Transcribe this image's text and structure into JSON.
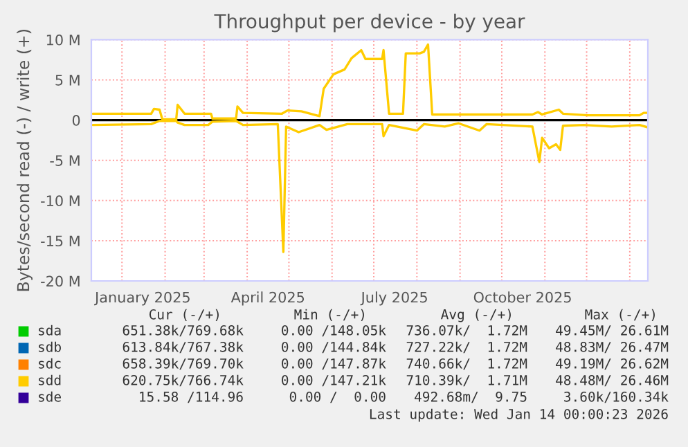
{
  "chart_data": {
    "type": "line",
    "title": "Throughput per device - by year",
    "ylabel": "Bytes/second read (-) / write (+)",
    "xlim": [
      "2024-12-10",
      "2026-01-14"
    ],
    "ylim": [
      -20,
      10
    ],
    "yticks": [
      {
        "value": 10,
        "label": "10 M"
      },
      {
        "value": 5,
        "label": "5 M"
      },
      0,
      {
        "value": -5,
        "label": "-5 M"
      },
      {
        "value": -10,
        "label": "-10 M"
      },
      {
        "value": -15,
        "label": "-15 M"
      },
      {
        "value": -20,
        "label": "-20 M"
      }
    ],
    "xticks": [
      {
        "value": "2025-01-01",
        "label": null
      },
      {
        "value": "2025-01-16",
        "label": "January 2025"
      },
      {
        "value": "2025-02-01",
        "label": null
      },
      {
        "value": "2025-03-01",
        "label": null
      },
      {
        "value": "2025-04-01",
        "label": null
      },
      {
        "value": "2025-04-16",
        "label": "April 2025"
      },
      {
        "value": "2025-05-01",
        "label": null
      },
      {
        "value": "2025-06-01",
        "label": null
      },
      {
        "value": "2025-07-01",
        "label": null
      },
      {
        "value": "2025-07-16",
        "label": "July 2025"
      },
      {
        "value": "2025-08-01",
        "label": null
      },
      {
        "value": "2025-09-01",
        "label": null
      },
      {
        "value": "2025-10-01",
        "label": null
      },
      {
        "value": "2025-10-16",
        "label": "October 2025"
      },
      {
        "value": "2025-11-01",
        "label": null
      },
      {
        "value": "2025-12-01",
        "label": null
      },
      {
        "value": "2026-01-01",
        "label": null
      }
    ],
    "grid": true,
    "legend": "bottom",
    "ref_lines": [
      {
        "axis": "y",
        "value": 0,
        "color": "#000000"
      }
    ],
    "series": [
      {
        "name": "sda",
        "color": "#00cc00"
      },
      {
        "name": "sdb",
        "color": "#0066b3"
      },
      {
        "name": "sdc",
        "color": "#ff8000"
      },
      {
        "name": "sdd",
        "color": "#ffcc00",
        "x": [
          "2024-12-11",
          "2025-01-22",
          "2025-01-24",
          "2025-01-28",
          "2025-01-30",
          "2025-02-09",
          "2025-02-10",
          "2025-02-15",
          "2025-03-06",
          "2025-03-07",
          "2025-03-24",
          "2025-03-25",
          "2025-03-29",
          "2025-04-26",
          "2025-04-30",
          "2025-05-10",
          "2025-05-23",
          "2025-05-26",
          "2025-06-02",
          "2025-06-10",
          "2025-06-15",
          "2025-06-22",
          "2025-06-25",
          "2025-07-07",
          "2025-07-08",
          "2025-07-12",
          "2025-07-22",
          "2025-07-24",
          "2025-08-03",
          "2025-08-06",
          "2025-08-09",
          "2025-08-12",
          "2025-10-23",
          "2025-10-27",
          "2025-10-30",
          "2025-11-11",
          "2025-11-14",
          "2025-12-02",
          "2026-01-08",
          "2026-01-11",
          "2026-01-14"
        ],
        "values": [
          0.8,
          0.8,
          1.4,
          1.3,
          0.1,
          0.1,
          1.9,
          0.8,
          0.8,
          0.2,
          0.2,
          1.7,
          0.9,
          0.8,
          1.2,
          1.1,
          0.5,
          3.9,
          5.7,
          6.3,
          7.7,
          8.7,
          7.6,
          7.6,
          8.7,
          0.8,
          0.8,
          8.3,
          8.3,
          8.5,
          9.4,
          0.7,
          0.7,
          1.0,
          0.7,
          1.3,
          0.8,
          0.6,
          0.6,
          0.9,
          0.9
        ]
      },
      {
        "color": "#ffcc00",
        "x": [
          "2024-12-11",
          "2025-01-22",
          "2025-01-28",
          "2025-02-09",
          "2025-02-10",
          "2025-02-15",
          "2025-03-04",
          "2025-03-07",
          "2025-03-24",
          "2025-03-29",
          "2025-04-23",
          "2025-04-27",
          "2025-04-29",
          "2025-05-08",
          "2025-05-23",
          "2025-05-28",
          "2025-06-12",
          "2025-07-07",
          "2025-07-08",
          "2025-07-12",
          "2025-08-01",
          "2025-08-06",
          "2025-08-21",
          "2025-08-31",
          "2025-09-15",
          "2025-09-20",
          "2025-10-23",
          "2025-10-28",
          "2025-10-30",
          "2025-11-04",
          "2025-11-09",
          "2025-11-12",
          "2025-11-14",
          "2025-11-29",
          "2025-12-19",
          "2026-01-08",
          "2026-01-14"
        ],
        "values": [
          -0.6,
          -0.5,
          -0.1,
          -0.1,
          -0.3,
          -0.6,
          -0.6,
          -0.2,
          -0.1,
          -0.6,
          -0.5,
          -16.4,
          -0.8,
          -1.5,
          -0.6,
          -1.2,
          -0.5,
          -0.5,
          -2.0,
          -0.6,
          -1.3,
          -0.5,
          -0.8,
          -0.4,
          -1.3,
          -0.5,
          -0.8,
          -5.2,
          -2.2,
          -3.5,
          -3.0,
          -3.7,
          -0.7,
          -0.6,
          -0.8,
          -0.6,
          -0.9
        ]
      },
      {
        "name": "sde",
        "color": "#330099"
      }
    ],
    "annotations": [
      "Cur (-/+)",
      "Min (-/+)",
      "Avg (-/+)",
      "Max (-/+)",
      "651.38k/769.68k",
      "0.00 /148.05k",
      "736.07k/  1.72M",
      "49.45M/ 26.61M",
      "613.84k/767.38k",
      "0.00 /144.84k",
      "727.22k/  1.72M",
      "48.83M/ 26.47M",
      "658.39k/769.70k",
      "0.00 /147.87k",
      "740.66k/  1.72M",
      "49.19M/ 26.62M",
      "620.75k/766.74k",
      "0.00 /147.21k",
      "710.39k/  1.71M",
      "48.48M/ 26.46M",
      "15.58 /114.96",
      "0.00 /  0.00",
      "492.68m/  9.75",
      "3.60k/160.34k",
      "Last update: Wed Jan 14 00:00:23 2026"
    ]
  }
}
